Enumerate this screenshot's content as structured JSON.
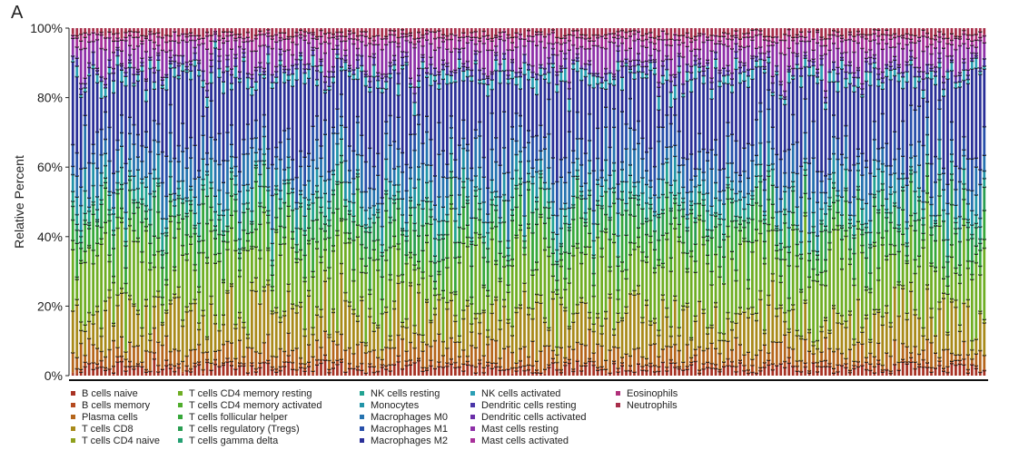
{
  "panel_label": "A",
  "chart_data": {
    "type": "bar",
    "stacked": true,
    "xlabel": "",
    "ylabel": "Relative Percent",
    "ylim": [
      0,
      100
    ],
    "yticks": [
      "0%",
      "20%",
      "40%",
      "60%",
      "80%",
      "100%"
    ],
    "sample_count": 225,
    "legend_position": "bottom",
    "series": [
      {
        "name": "B cells naive",
        "color": "#a83224",
        "mean": 2.0
      },
      {
        "name": "B cells memory",
        "color": "#b54a1f",
        "mean": 1.0
      },
      {
        "name": "Plasma cells",
        "color": "#b5661c",
        "mean": 4.0
      },
      {
        "name": "T cells CD8",
        "color": "#a88a1a",
        "mean": 9.0
      },
      {
        "name": "T cells CD4 naive",
        "color": "#8fa01c",
        "mean": 1.5
      },
      {
        "name": "T cells CD4 memory resting",
        "color": "#6fae24",
        "mean": 14.0
      },
      {
        "name": "T cells CD4 memory activated",
        "color": "#4fad2c",
        "mean": 2.0
      },
      {
        "name": "T cells follicular helper",
        "color": "#37a83a",
        "mean": 6.0
      },
      {
        "name": "T cells regulatory (Tregs)",
        "color": "#2a9e52",
        "mean": 4.0
      },
      {
        "name": "T cells gamma delta",
        "color": "#24a072",
        "mean": 1.0
      },
      {
        "name": "NK cells resting",
        "color": "#22a392",
        "mean": 3.0
      },
      {
        "name": "Monocytes",
        "color": "#2294a8",
        "mean": 3.5
      },
      {
        "name": "Macrophages M0",
        "color": "#2673b0",
        "mean": 6.0
      },
      {
        "name": "Macrophages M1",
        "color": "#2850aa",
        "mean": 6.0
      },
      {
        "name": "Macrophages M2",
        "color": "#2a2f98",
        "mean": 16.0
      },
      {
        "name": "NK cells activated",
        "color": "#2b9fb5",
        "mean": 2.0
      },
      {
        "name": "Dendritic cells resting",
        "color": "#4a36a8",
        "mean": 1.5
      },
      {
        "name": "Dendritic cells activated",
        "color": "#6a2ea8",
        "mean": 1.0
      },
      {
        "name": "Mast cells resting",
        "color": "#8e30a8",
        "mean": 5.0
      },
      {
        "name": "Mast cells activated",
        "color": "#a8309a",
        "mean": 2.0
      },
      {
        "name": "Eosinophils",
        "color": "#b0307a",
        "mean": 1.0
      },
      {
        "name": "Neutrophils",
        "color": "#a82e4a",
        "mean": 1.5
      }
    ]
  }
}
